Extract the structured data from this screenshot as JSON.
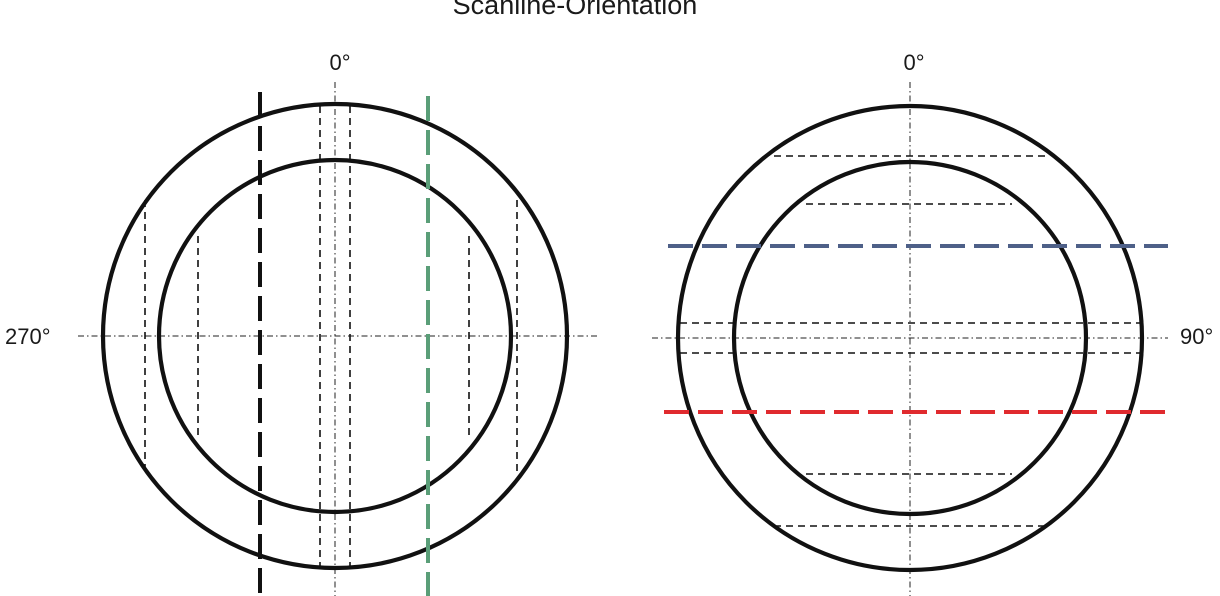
{
  "title": "Scanline-Orientation",
  "left_diagram": {
    "top_label": "0°",
    "left_label": "270°"
  },
  "right_diagram": {
    "top_label": "0°",
    "right_label": "90°"
  },
  "colors": {
    "ring": "#111111",
    "black_scanline": "#111111",
    "green_scanline": "#5a9e78",
    "blue_scanline": "#4e6088",
    "red_scanline": "#e02a2e"
  }
}
